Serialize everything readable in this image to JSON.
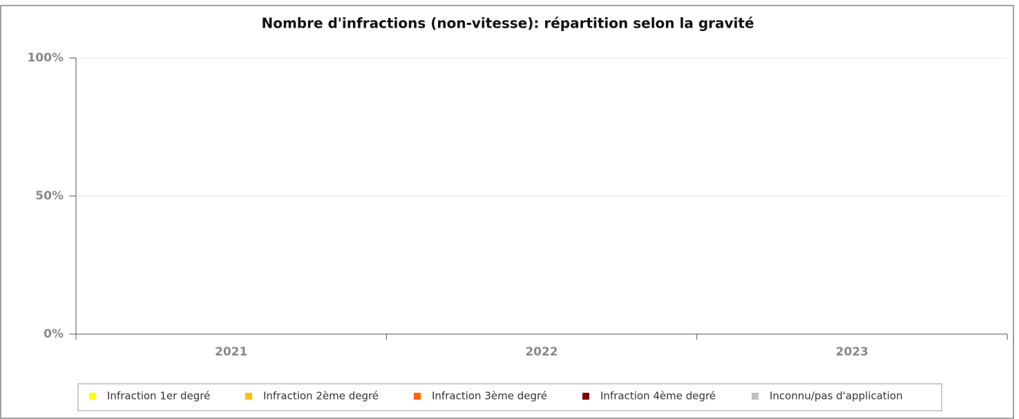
{
  "chart_data": {
    "type": "bar",
    "stacked": true,
    "title": "Nombre d'infractions (non-vitesse): répartition selon la gravité",
    "categories": [
      "2021",
      "2022",
      "2023"
    ],
    "series": [
      {
        "name": "Infraction 1er degré",
        "color": "#ffff00",
        "values": [
          0,
          0,
          0
        ]
      },
      {
        "name": "Infraction 2ème degré",
        "color": "#ffc000",
        "values": [
          0,
          0,
          0
        ]
      },
      {
        "name": "Infraction 3ème degré",
        "color": "#ff6600",
        "values": [
          0,
          0,
          0
        ]
      },
      {
        "name": "Infraction 4ème degré",
        "color": "#800000",
        "values": [
          0,
          0,
          0
        ]
      },
      {
        "name": "Inconnu/pas d'application",
        "color": "#c0c0c0",
        "values": [
          0,
          0,
          0
        ]
      }
    ],
    "ylim": [
      0,
      100
    ],
    "yticks": [
      {
        "value": 0,
        "label": "0%"
      },
      {
        "value": 50,
        "label": "50%"
      },
      {
        "value": 100,
        "label": "100%"
      }
    ],
    "grid": true,
    "legend": "bottom"
  }
}
